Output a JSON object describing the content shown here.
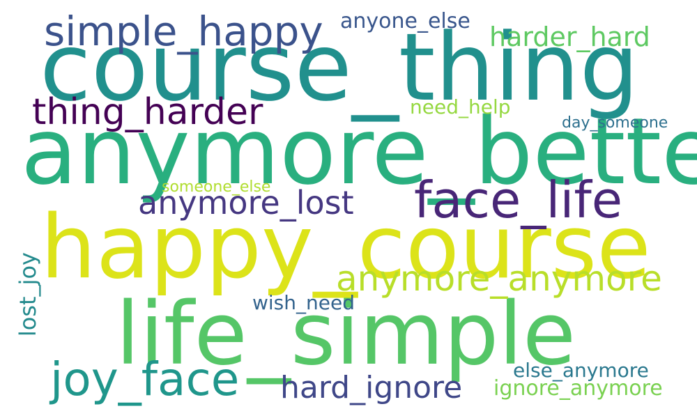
{
  "words": {
    "course_thing": {
      "text": "course_thing",
      "color": "#21908d"
    },
    "anymore_better": {
      "text": "anymore_better",
      "color": "#29af7f"
    },
    "happy_course": {
      "text": "happy_course",
      "color": "#dce319"
    },
    "life_simple": {
      "text": "life_simple",
      "color": "#55c667"
    },
    "simple_happy": {
      "text": "simple_happy",
      "color": "#3b528b"
    },
    "thing_harder": {
      "text": "thing_harder",
      "color": "#440154"
    },
    "face_life": {
      "text": "face_life",
      "color": "#482677"
    },
    "anymore_lost": {
      "text": "anymore_lost",
      "color": "#453781"
    },
    "anymore_anymore": {
      "text": "anymore_anymore",
      "color": "#b8de29"
    },
    "joy_face": {
      "text": "joy_face",
      "color": "#1f968b"
    },
    "hard_ignore": {
      "text": "hard_ignore",
      "color": "#3f4788"
    },
    "harder_hard": {
      "text": "harder_hard",
      "color": "#5ec962"
    },
    "anyone_else": {
      "text": "anyone_else",
      "color": "#39568c"
    },
    "need_help": {
      "text": "need_help",
      "color": "#95d840"
    },
    "day_someone": {
      "text": "day_someone",
      "color": "#2d708e"
    },
    "someone_else": {
      "text": "someone_else",
      "color": "#b0dd2f"
    },
    "lost_joy": {
      "text": "lost_joy",
      "color": "#238a8d"
    },
    "wish_need": {
      "text": "wish_need",
      "color": "#33638d"
    },
    "else_anymore": {
      "text": "else_anymore",
      "color": "#2a788e"
    },
    "ignore_anymore": {
      "text": "ignore_anymore",
      "color": "#7ad151"
    }
  }
}
